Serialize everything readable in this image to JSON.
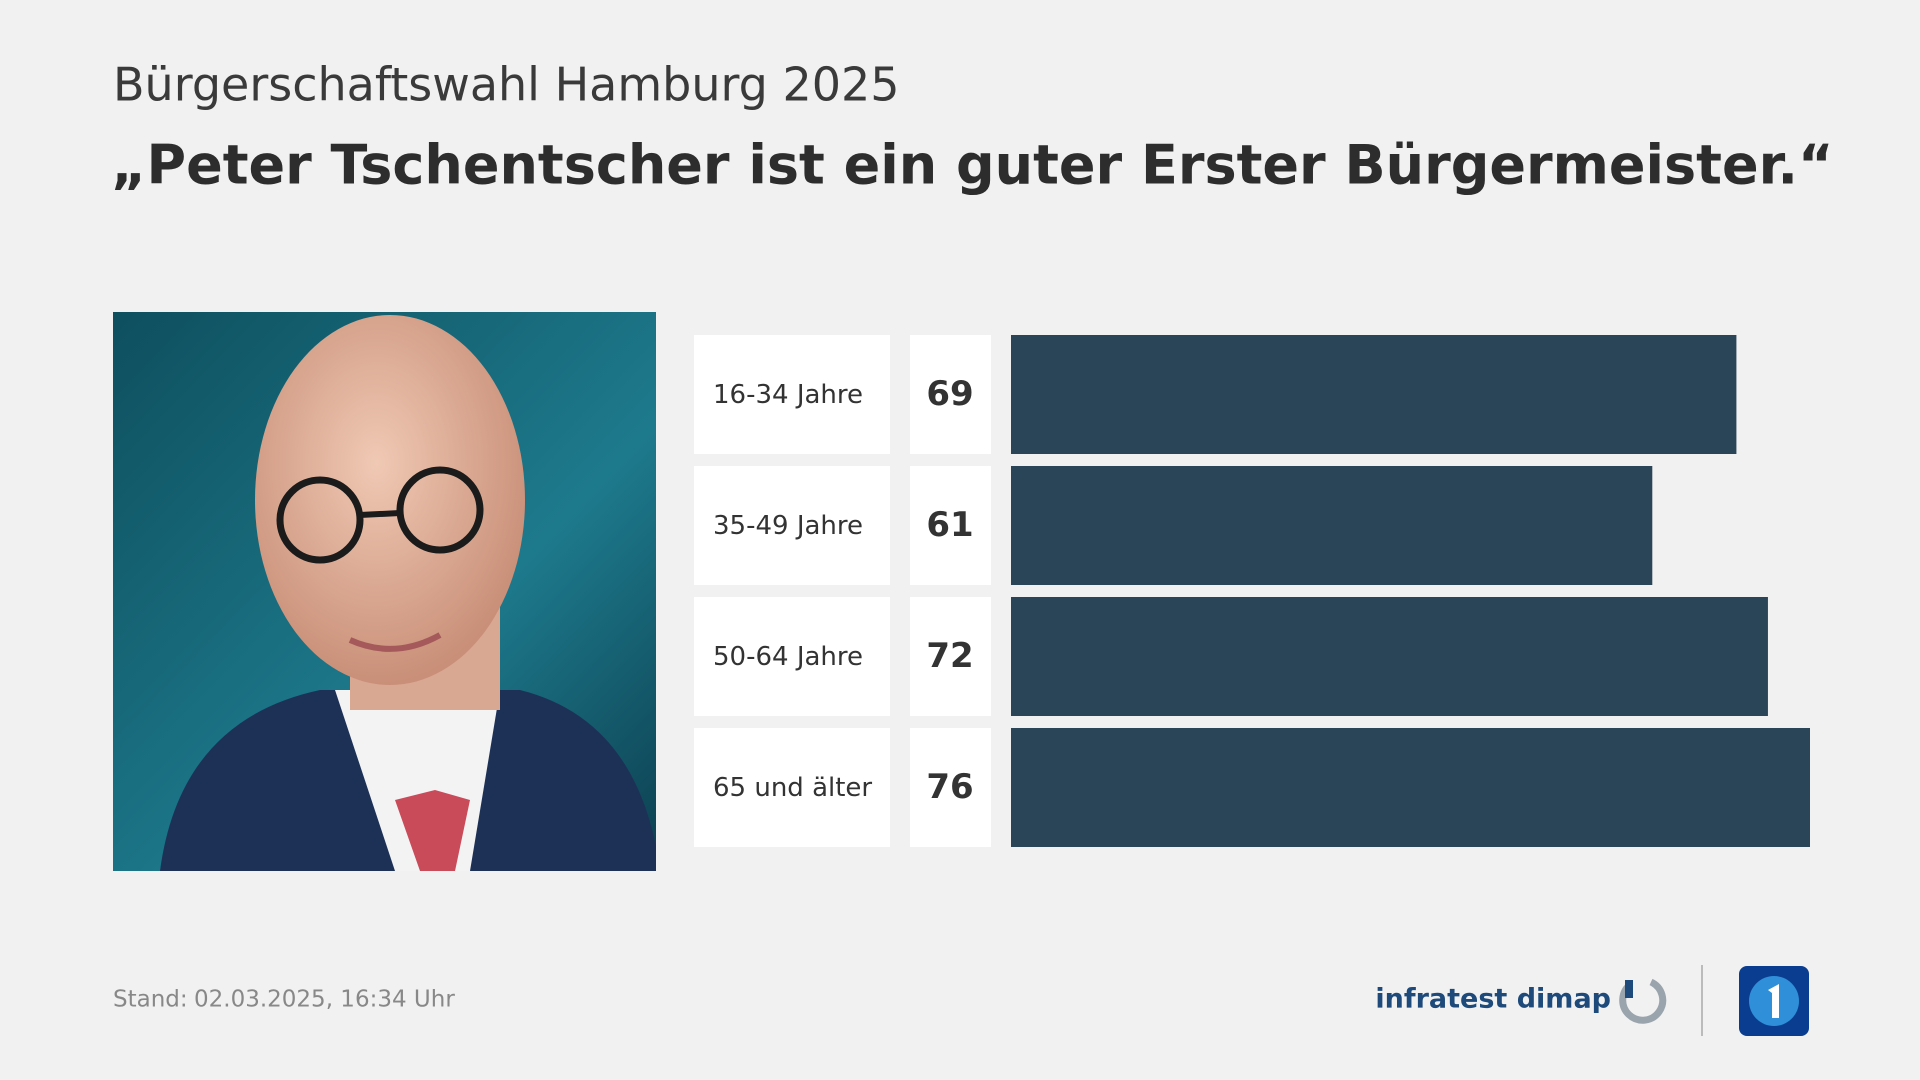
{
  "chart_data": {
    "type": "bar",
    "orientation": "horizontal",
    "subtitle": "Bürgerschaftswahl Hamburg 2025",
    "title": "„Peter Tschentscher ist ein guter Erster Bürgermeister.“",
    "categories": [
      "16-34 Jahre",
      "35-49 Jahre",
      "50-64 Jahre",
      "65 und älter"
    ],
    "values": [
      69,
      61,
      72,
      76
    ],
    "color": "#2b4558"
  },
  "footer": {
    "stand_label": "Stand:",
    "timestamp": "02.03.2025, 16:34 Uhr",
    "source": "infratest dimap"
  }
}
